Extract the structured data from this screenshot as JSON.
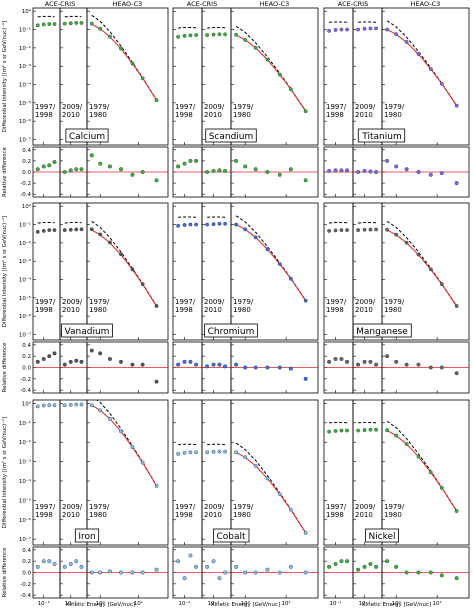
{
  "chart_data": {
    "type": "multi-panel-scatter",
    "instruments": [
      "ACE-CRIS",
      "HEAO-C3"
    ],
    "periods": [
      [
        "1997/",
        "1998"
      ],
      [
        "2009/",
        "2010"
      ],
      [
        "1979/",
        "1980"
      ]
    ],
    "ylabel": "Differential Intensity [(m² s sr GeV/nuc)⁻¹]",
    "dlabel": "Relative difference",
    "xlabel": "Kinetic Energy [GeV/nuc]",
    "log_x": true,
    "log_y": true,
    "model_color": "#d62728",
    "lis_color": "#000000",
    "ace_x": [
      0.06,
      0.1,
      0.16,
      0.25
    ],
    "heao_x": [
      0.6,
      1,
      1.8,
      3.5,
      7,
      13,
      30
    ],
    "ace_xlim": [
      0.04,
      0.4
    ],
    "heao_xlim": [
      0.45,
      60
    ],
    "ace_xticks": [
      {
        "value": 0.1,
        "label": "10⁻¹"
      }
    ],
    "heao_xticks": [
      {
        "value": 1,
        "label": "10⁰"
      },
      {
        "value": 10,
        "label": "10¹"
      }
    ],
    "ylim": [
      5e-08,
      1.5
    ],
    "yticks": [
      {
        "value": 1,
        "label": "10⁰"
      },
      {
        "value": 0.1,
        "label": "10⁻¹"
      },
      {
        "value": 0.01,
        "label": "10⁻²"
      },
      {
        "value": 0.001,
        "label": "10⁻³"
      },
      {
        "value": 0.0001,
        "label": "10⁻⁴"
      },
      {
        "value": 1e-05,
        "label": "10⁻⁵"
      },
      {
        "value": 1e-06,
        "label": "10⁻⁶"
      },
      {
        "value": 1e-07,
        "label": "10⁻⁷"
      }
    ],
    "dlim": [
      -0.45,
      0.45
    ],
    "dticks": [
      -0.4,
      -0.2,
      {
        "value": 0,
        "label": "0.0"
      },
      0.2,
      0.4
    ],
    "panels": [
      {
        "name": "Calcium",
        "color": "#3cb043",
        "ace": [
          {
            "values": [
              0.17,
              0.19,
              0.2,
              0.2
            ],
            "diff": [
              0.05,
              0.1,
              0.12,
              0.18
            ]
          },
          {
            "values": [
              0.21,
              0.22,
              0.23,
              0.23
            ],
            "diff": [
              0.0,
              0.03,
              0.05,
              0.05
            ]
          }
        ],
        "ace_lis": [
          0.5,
          0.52,
          0.52,
          0.5
        ],
        "heao": {
          "values": [
            0.21,
            0.11,
            0.041,
            0.0092,
            0.0014,
            0.00022,
            1.4e-05
          ],
          "model": [
            0.2,
            0.11,
            0.04,
            0.009,
            0.0014,
            0.00022,
            1.4e-05
          ],
          "lis": [
            0.6,
            0.28,
            0.076,
            0.0126,
            0.0016,
            0.00023,
            1.43e-05
          ],
          "diff": [
            0.3,
            0.15,
            0.1,
            0.05,
            -0.05,
            0.0,
            -0.15
          ]
        }
      },
      {
        "name": "Scandium",
        "color": "#3cb043",
        "ace": [
          {
            "values": [
              0.04,
              0.045,
              0.048,
              0.05
            ],
            "diff": [
              0.1,
              0.15,
              0.2,
              0.2
            ]
          },
          {
            "values": [
              0.05,
              0.053,
              0.055,
              0.055
            ],
            "diff": [
              0.0,
              0.02,
              0.03,
              0.02
            ]
          }
        ],
        "ace_lis": [
          0.12,
          0.13,
          0.13,
          0.125
        ],
        "heao": {
          "values": [
            0.052,
            0.027,
            0.0101,
            0.0023,
            0.00035,
            5.5e-05,
            3.5e-06
          ],
          "model": [
            0.05,
            0.0275,
            0.01,
            0.00225,
            0.00035,
            5.5e-05,
            3.5e-06
          ],
          "lis": [
            0.15,
            0.07,
            0.019,
            0.0032,
            0.0004,
            5.8e-05,
            3.6e-06
          ],
          "diff": [
            0.2,
            0.1,
            0.05,
            0.0,
            -0.05,
            0.05,
            -0.15
          ]
        }
      },
      {
        "name": "Titanium",
        "color": "#7b68ee",
        "ace": [
          {
            "values": [
              0.085,
              0.095,
              0.1,
              0.1
            ],
            "diff": [
              0.02,
              0.03,
              0.03,
              0.03
            ]
          },
          {
            "values": [
              0.1,
              0.11,
              0.115,
              0.115
            ],
            "diff": [
              0.0,
              0.02,
              0.01,
              0.0
            ]
          }
        ],
        "ace_lis": [
          0.25,
          0.26,
          0.26,
          0.25
        ],
        "heao": {
          "values": [
            0.1,
            0.056,
            0.021,
            0.0046,
            0.0007,
            0.00011,
            7e-06
          ],
          "model": [
            0.1,
            0.055,
            0.02,
            0.0045,
            0.0007,
            0.00011,
            7e-06
          ],
          "lis": [
            0.3,
            0.14,
            0.038,
            0.0063,
            0.0008,
            0.000115,
            7.1e-06
          ],
          "diff": [
            0.2,
            0.1,
            0.05,
            0.0,
            -0.05,
            -0.02,
            -0.2
          ]
        }
      },
      {
        "name": "Vanadium",
        "color": "#555555",
        "ace": [
          {
            "values": [
              0.04,
              0.045,
              0.05,
              0.05
            ],
            "diff": [
              0.1,
              0.15,
              0.2,
              0.25
            ]
          },
          {
            "values": [
              0.05,
              0.052,
              0.054,
              0.055
            ],
            "diff": [
              0.05,
              0.1,
              0.12,
              0.1
            ]
          }
        ],
        "ace_lis": [
          0.12,
          0.13,
          0.13,
          0.125
        ],
        "heao": {
          "values": [
            0.055,
            0.029,
            0.0105,
            0.0024,
            0.00036,
            5.6e-05,
            3.6e-06
          ],
          "model": [
            0.05,
            0.0275,
            0.01,
            0.00225,
            0.00035,
            5.5e-05,
            3.5e-06
          ],
          "lis": [
            0.15,
            0.07,
            0.019,
            0.0032,
            0.0004,
            5.8e-05,
            3.6e-06
          ],
          "diff": [
            0.3,
            0.25,
            0.15,
            0.1,
            0.05,
            0.05,
            -0.25
          ]
        }
      },
      {
        "name": "Chromium",
        "color": "#4169e1",
        "ace": [
          {
            "values": [
              0.085,
              0.095,
              0.1,
              0.1
            ],
            "diff": [
              0.05,
              0.1,
              0.1,
              0.05
            ]
          },
          {
            "values": [
              0.1,
              0.105,
              0.11,
              0.11
            ],
            "diff": [
              0.02,
              0.05,
              0.05,
              0.02
            ]
          }
        ],
        "ace_lis": [
          0.25,
          0.26,
          0.26,
          0.25
        ],
        "heao": {
          "values": [
            0.1,
            0.055,
            0.02,
            0.0045,
            0.0007,
            0.00011,
            7e-06
          ],
          "model": [
            0.1,
            0.055,
            0.02,
            0.0045,
            0.0007,
            0.00011,
            7e-06
          ],
          "lis": [
            0.3,
            0.14,
            0.038,
            0.0063,
            0.0008,
            0.000115,
            7.1e-06
          ],
          "diff": [
            0.05,
            0.0,
            0.0,
            0.0,
            0.0,
            -0.02,
            -0.2
          ]
        }
      },
      {
        "name": "Manganese",
        "color": "#666666",
        "ace": [
          {
            "values": [
              0.045,
              0.048,
              0.05,
              0.05
            ],
            "diff": [
              0.1,
              0.15,
              0.15,
              0.1
            ]
          },
          {
            "values": [
              0.05,
              0.052,
              0.053,
              0.054
            ],
            "diff": [
              0.05,
              0.1,
              0.1,
              0.05
            ]
          }
        ],
        "ace_lis": [
          0.12,
          0.13,
          0.13,
          0.125
        ],
        "heao": {
          "values": [
            0.052,
            0.028,
            0.0102,
            0.0023,
            0.00036,
            5.6e-05,
            3.6e-06
          ],
          "model": [
            0.05,
            0.0275,
            0.01,
            0.00225,
            0.00035,
            5.5e-05,
            3.5e-06
          ],
          "lis": [
            0.15,
            0.07,
            0.019,
            0.0032,
            0.0004,
            5.8e-05,
            3.6e-06
          ],
          "diff": [
            0.2,
            0.1,
            0.05,
            0.05,
            0.0,
            0.0,
            -0.1
          ]
        }
      },
      {
        "name": "Iron",
        "color": "#87bdea",
        "ace": [
          {
            "values": [
              0.7,
              0.78,
              0.82,
              0.8
            ],
            "diff": [
              0.1,
              0.2,
              0.2,
              0.15
            ]
          },
          {
            "values": [
              0.8,
              0.85,
              0.88,
              0.88
            ],
            "diff": [
              0.1,
              0.15,
              0.2,
              0.1
            ]
          }
        ],
        "ace_lis": [
          2,
          2.1,
          2.1,
          2
        ],
        "heao": {
          "values": [
            0.8,
            0.44,
            0.16,
            0.036,
            0.0056,
            0.00088,
            5.6e-05
          ],
          "model": [
            0.8,
            0.44,
            0.16,
            0.036,
            0.0056,
            0.00088,
            5.6e-05
          ],
          "lis": [
            2.4,
            1.12,
            0.3,
            0.05,
            0.0064,
            0.00092,
            5.7e-05
          ],
          "diff": [
            0.0,
            0.0,
            0.02,
            0.0,
            0.0,
            0.0,
            0.05
          ]
        }
      },
      {
        "name": "Cobalt",
        "color": "#87bdea",
        "ace": [
          {
            "values": [
              0.0025,
              0.0028,
              0.003,
              0.003
            ],
            "diff": [
              0.2,
              -0.1,
              0.3,
              0.1
            ]
          },
          {
            "values": [
              0.003,
              0.0032,
              0.0033,
              0.0033
            ],
            "diff": [
              0.1,
              0.2,
              -0.1,
              0.0
            ]
          }
        ],
        "ace_lis": [
          0.0075,
          0.0078,
          0.0078,
          0.0075
        ],
        "heao": {
          "values": [
            0.003,
            0.0017,
            0.0006,
            0.000135,
            2.1e-05,
            3.3e-06,
            2.1e-07
          ],
          "model": [
            0.003,
            0.00165,
            0.0006,
            0.000135,
            2.1e-05,
            3.3e-06,
            2.1e-07
          ],
          "lis": [
            0.009,
            0.0042,
            0.00114,
            0.00019,
            2.4e-05,
            3.5e-06,
            2.14e-07
          ],
          "diff": [
            0.1,
            0.0,
            0.0,
            0.05,
            0.0,
            0.1,
            0.0
          ]
        }
      },
      {
        "name": "Nickel",
        "color": "#3cb043",
        "ace": [
          {
            "values": [
              0.035,
              0.038,
              0.04,
              0.04
            ],
            "diff": [
              0.1,
              0.15,
              0.2,
              0.2
            ]
          },
          {
            "values": [
              0.04,
              0.042,
              0.044,
              0.044
            ],
            "diff": [
              0.05,
              0.1,
              0.15,
              0.1
            ]
          }
        ],
        "ace_lis": [
          0.1,
          0.104,
          0.104,
          0.1
        ],
        "heao": {
          "values": [
            0.042,
            0.022,
            0.008,
            0.0018,
            0.00028,
            4.4e-05,
            2.8e-06
          ],
          "model": [
            0.04,
            0.022,
            0.008,
            0.0018,
            0.00028,
            4.4e-05,
            2.8e-06
          ],
          "lis": [
            0.12,
            0.056,
            0.0152,
            0.0025,
            0.00032,
            4.6e-05,
            2.9e-06
          ],
          "diff": [
            0.2,
            0.1,
            0.0,
            0.0,
            0.0,
            -0.05,
            -0.1
          ]
        }
      }
    ]
  }
}
